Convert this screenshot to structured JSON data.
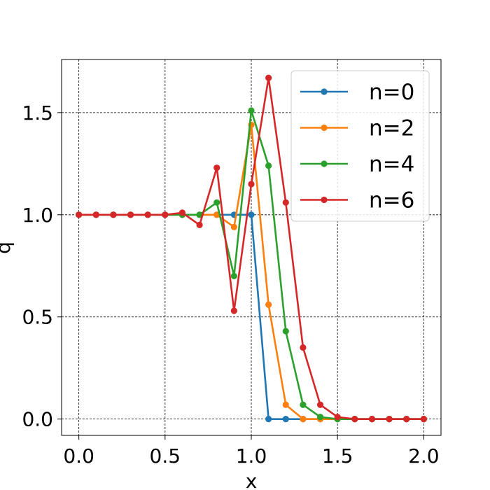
{
  "chart_data": {
    "type": "line",
    "title": "",
    "xlabel": "x",
    "ylabel": "q",
    "xlim": [
      -0.1,
      2.1
    ],
    "ylim": [
      -0.08,
      1.76
    ],
    "xticks": [
      0.0,
      0.5,
      1.0,
      1.5,
      2.0
    ],
    "xtick_labels": [
      "0.0",
      "0.5",
      "1.0",
      "1.5",
      "2.0"
    ],
    "yticks": [
      0.0,
      0.5,
      1.0,
      1.5
    ],
    "ytick_labels": [
      "0.0",
      "0.5",
      "1.0",
      "1.5"
    ],
    "grid": true,
    "legend_position": "top-right",
    "x": [
      0.0,
      0.1,
      0.2,
      0.3,
      0.4,
      0.5,
      0.6,
      0.7,
      0.8,
      0.9,
      1.0,
      1.1,
      1.2,
      1.3,
      1.4,
      1.5,
      1.6,
      1.7,
      1.8,
      1.9,
      2.0
    ],
    "series": [
      {
        "name": "n=0",
        "color": "#1f77b4",
        "values": [
          1.0,
          1.0,
          1.0,
          1.0,
          1.0,
          1.0,
          1.0,
          1.0,
          1.0,
          1.0,
          1.0,
          0.0,
          0.0,
          0.0,
          0.0,
          0.0,
          0.0,
          0.0,
          0.0,
          0.0,
          0.0
        ]
      },
      {
        "name": "n=2",
        "color": "#ff7f0e",
        "values": [
          1.0,
          1.0,
          1.0,
          1.0,
          1.0,
          1.0,
          1.0,
          1.0,
          1.0,
          0.94,
          1.44,
          0.56,
          0.07,
          0.0,
          0.0,
          0.0,
          0.0,
          0.0,
          0.0,
          0.0,
          0.0
        ]
      },
      {
        "name": "n=4",
        "color": "#2ca02c",
        "values": [
          1.0,
          1.0,
          1.0,
          1.0,
          1.0,
          1.0,
          1.0,
          1.0,
          1.06,
          0.7,
          1.51,
          1.24,
          0.43,
          0.07,
          0.01,
          0.0,
          0.0,
          0.0,
          0.0,
          0.0,
          0.0
        ]
      },
      {
        "name": "n=6",
        "color": "#d62728",
        "values": [
          1.0,
          1.0,
          1.0,
          1.0,
          1.0,
          1.0,
          1.01,
          0.95,
          1.23,
          0.53,
          1.15,
          1.67,
          1.06,
          0.35,
          0.07,
          0.01,
          0.0,
          0.0,
          0.0,
          0.0,
          0.0
        ]
      }
    ]
  }
}
